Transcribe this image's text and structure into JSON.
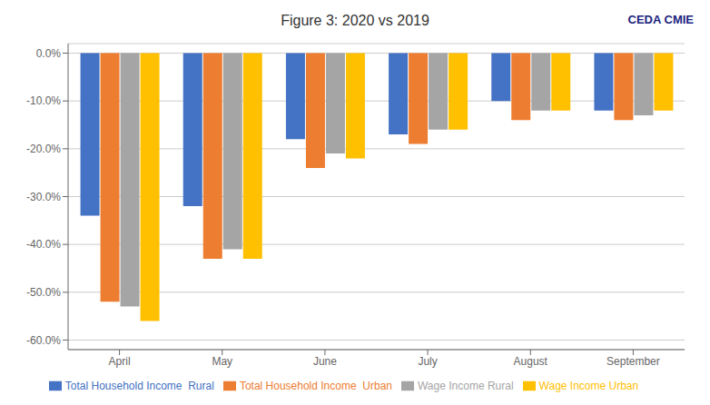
{
  "chart_data": {
    "type": "bar",
    "title": "Figure 3: 2020 vs 2019",
    "categories": [
      "April",
      "May",
      "June",
      "July",
      "August",
      "September"
    ],
    "series": [
      {
        "name": "Total Household Income  Rural",
        "color": "#4472C4",
        "values": [
          -34,
          -32,
          -18,
          -17,
          -10,
          -12
        ]
      },
      {
        "name": "Total Household Income  Urban",
        "color": "#ED7D31",
        "values": [
          -52,
          -43,
          -24,
          -19,
          -14,
          -14
        ]
      },
      {
        "name": "Wage Income Rural",
        "color": "#A5A5A5",
        "values": [
          -53,
          -41,
          -21,
          -16,
          -12,
          -13
        ]
      },
      {
        "name": "Wage Income Urban",
        "color": "#FFC000",
        "values": [
          -56,
          -43,
          -22,
          -16,
          -12,
          -12
        ]
      }
    ],
    "ylim": [
      -62,
      2
    ],
    "yticks": [
      {
        "value": 0,
        "label": "0.0%"
      },
      {
        "value": -10,
        "label": "-10.0%"
      },
      {
        "value": -20,
        "label": "-20.0%"
      },
      {
        "value": -30,
        "label": "-30.0%"
      },
      {
        "value": -40,
        "label": "-40.0%"
      },
      {
        "value": -50,
        "label": "-50.0%"
      },
      {
        "value": -60,
        "label": "-60.0%"
      }
    ],
    "grid": true,
    "legend": "bottom",
    "annotations": [
      "CEDA CMIE"
    ]
  }
}
